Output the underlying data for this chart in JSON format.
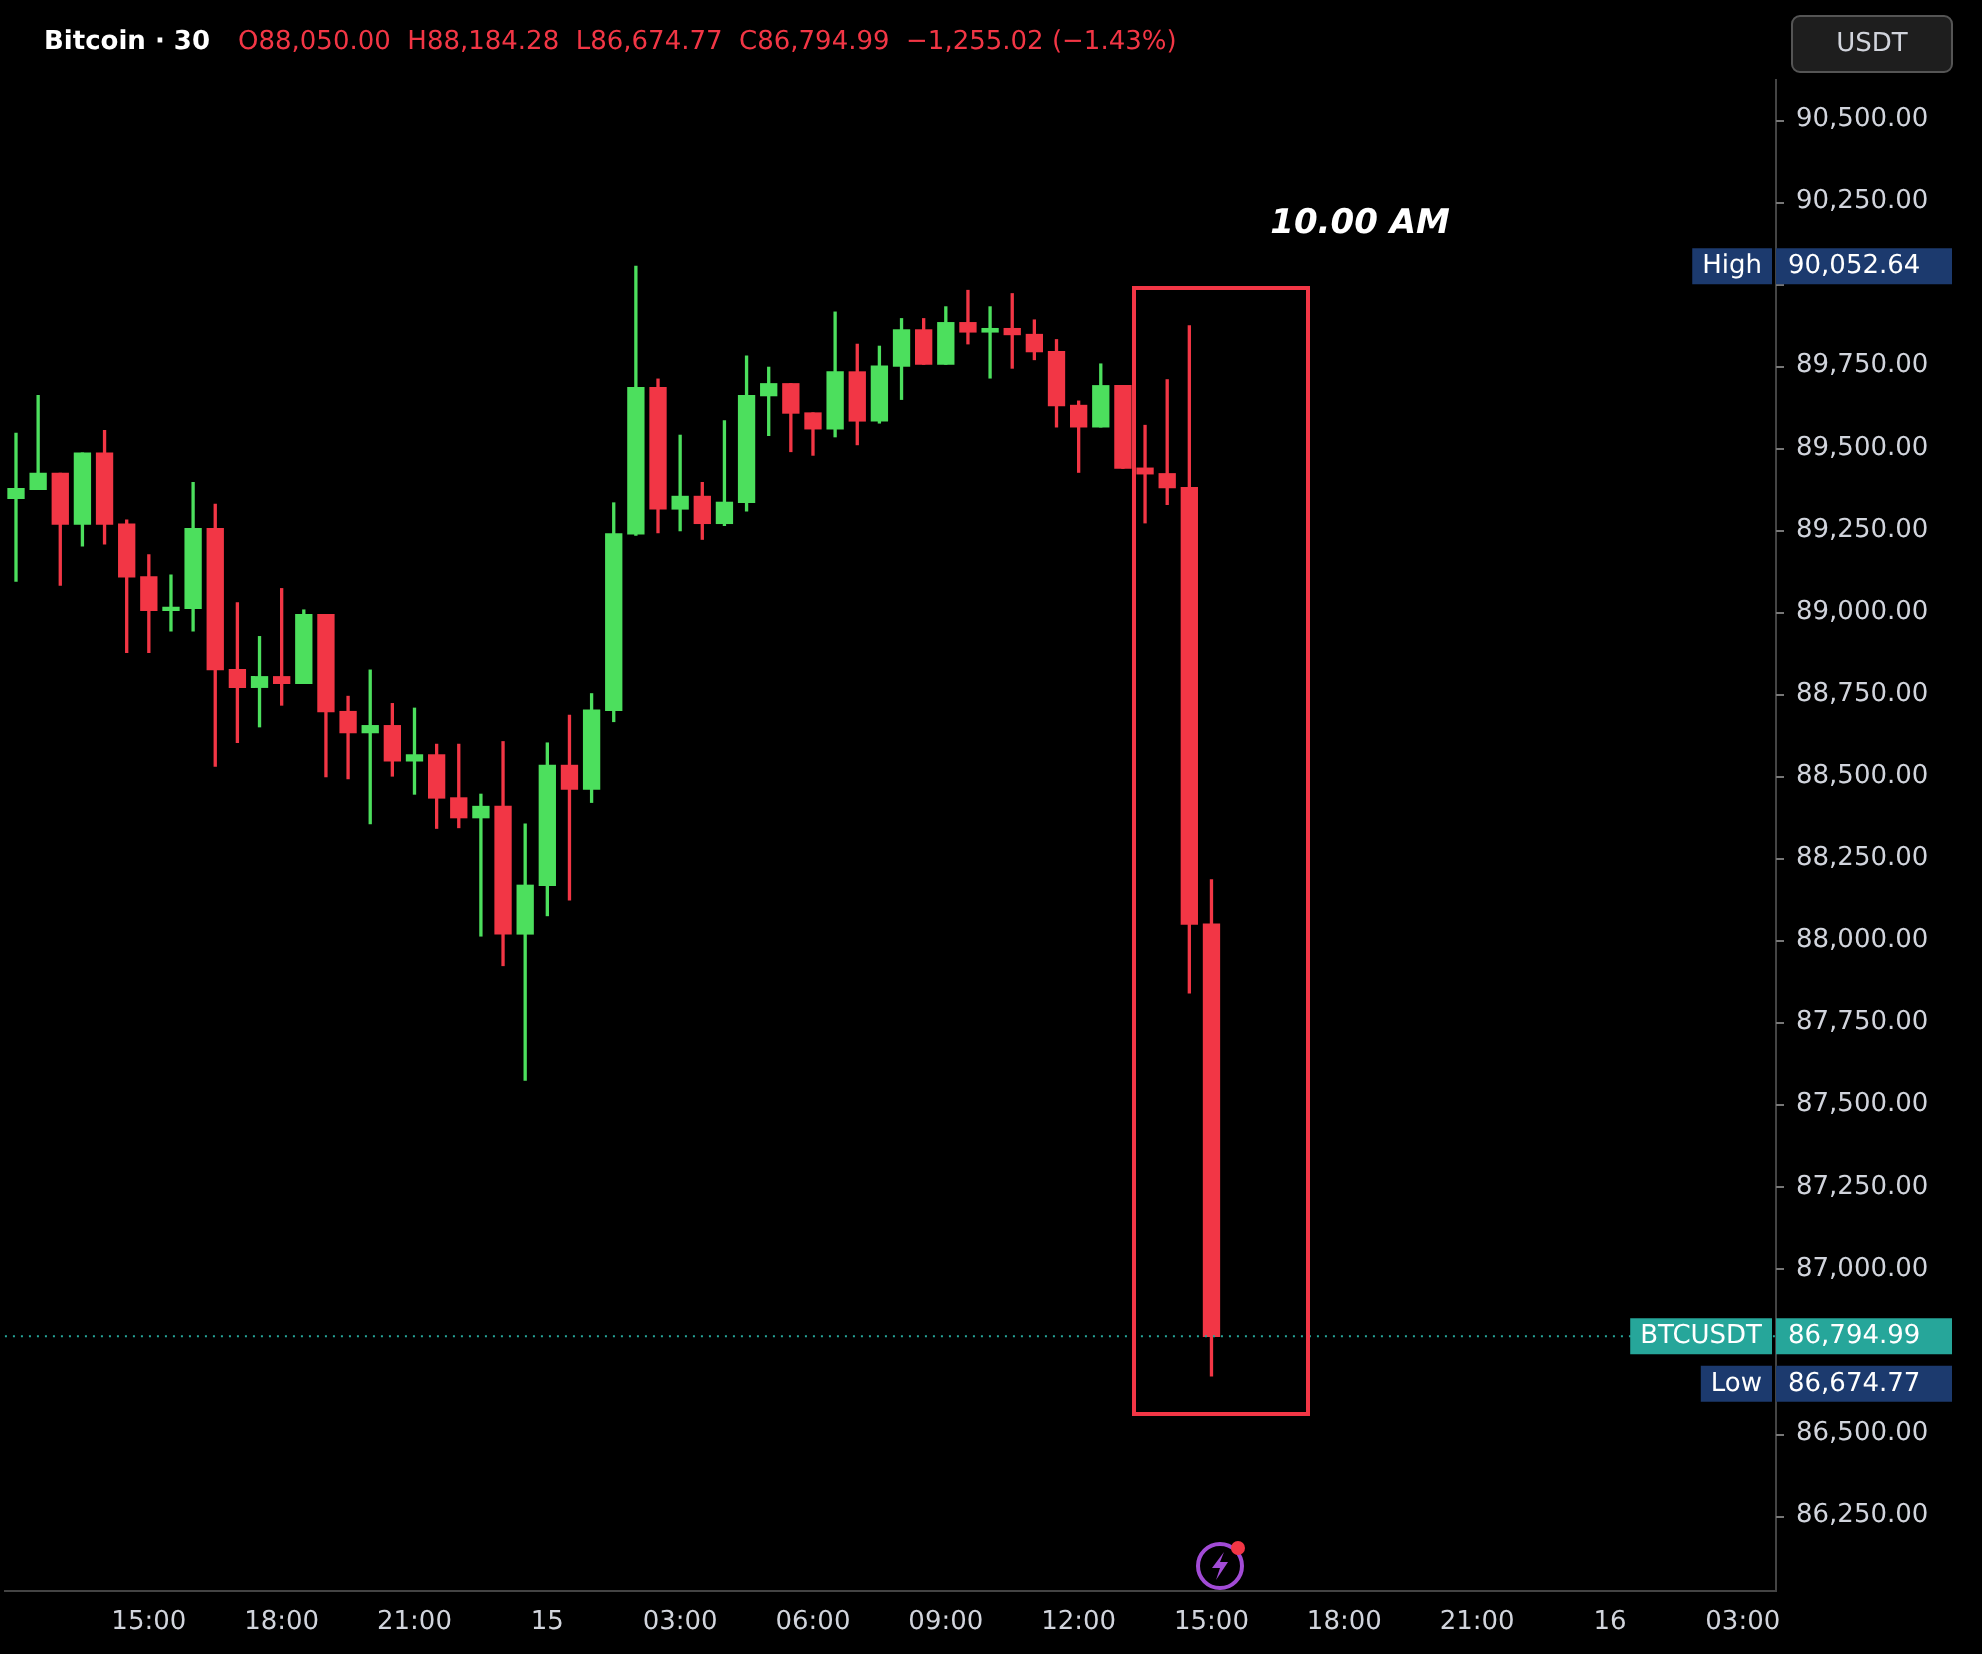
{
  "chart_data": {
    "type": "candlestick",
    "title": "Bitcoin · 30",
    "subtitle": "O88,050.00  H88,184.28  L86,674.77  C86,794.99  −1,255.02 (−1.43%)",
    "ylabel": "USDT",
    "categories": [
      null,
      null,
      null,
      null,
      null,
      null,
      "15:00",
      null,
      null,
      null,
      null,
      null,
      "18:00",
      null,
      null,
      null,
      null,
      null,
      "21:00",
      null,
      null,
      null,
      null,
      null,
      "15",
      null,
      null,
      null,
      null,
      null,
      "03:00",
      null,
      null,
      null,
      null,
      null,
      "06:00",
      null,
      null,
      null,
      null,
      null,
      "09:00",
      null,
      null,
      null,
      null,
      null,
      "12:00",
      null,
      null,
      null,
      null,
      null,
      "15:00",
      null,
      null,
      null,
      null,
      null,
      "18:00",
      null,
      null,
      null,
      null,
      null,
      "21:00",
      null,
      null,
      null,
      null,
      null,
      "16",
      null,
      null,
      null,
      null,
      null,
      "03:00",
      null
    ],
    "ohlc": [
      [
        89346,
        89544,
        89094,
        89376
      ],
      [
        89374,
        89659,
        89374,
        89422
      ],
      [
        89422,
        89422,
        89082,
        89268
      ],
      [
        89268,
        89484,
        89202,
        89484
      ],
      [
        89484,
        89552,
        89208,
        89268
      ],
      [
        89268,
        89280,
        88877,
        89107
      ],
      [
        89107,
        89174,
        88877,
        89005
      ],
      [
        89005,
        89112,
        88943,
        89014
      ],
      [
        89011,
        89394,
        88943,
        89254
      ],
      [
        89254,
        89328,
        88531,
        88825
      ],
      [
        88825,
        89028,
        88603,
        88771
      ],
      [
        88771,
        88925,
        88651,
        88803
      ],
      [
        88803,
        89071,
        88717,
        88783
      ],
      [
        88783,
        89006,
        88783,
        88992
      ],
      [
        88992,
        88992,
        88499,
        88697
      ],
      [
        88697,
        88743,
        88493,
        88633
      ],
      [
        88633,
        88823,
        88356,
        88654
      ],
      [
        88654,
        88721,
        88501,
        88547
      ],
      [
        88547,
        88707,
        88446,
        88565
      ],
      [
        88565,
        88597,
        88342,
        88434
      ],
      [
        88434,
        88597,
        88344,
        88374
      ],
      [
        88374,
        88445,
        88014,
        88408
      ],
      [
        88408,
        88605,
        87924,
        88020
      ],
      [
        88020,
        88354,
        87575,
        88168
      ],
      [
        88168,
        88601,
        88076,
        88533
      ],
      [
        88533,
        88685,
        88124,
        88461
      ],
      [
        88461,
        88751,
        88421,
        88701
      ],
      [
        88701,
        89332,
        88667,
        89238
      ],
      [
        89238,
        90052.64,
        89234,
        89683
      ],
      [
        89683,
        89709,
        89242,
        89314
      ],
      [
        89314,
        89538,
        89248,
        89352
      ],
      [
        89352,
        89394,
        89222,
        89270
      ],
      [
        89270,
        89582,
        89264,
        89334
      ],
      [
        89334,
        89779,
        89308,
        89659
      ],
      [
        89659,
        89745,
        89538,
        89695
      ],
      [
        89695,
        89695,
        89489,
        89606
      ],
      [
        89606,
        89606,
        89478,
        89558
      ],
      [
        89558,
        89913,
        89534,
        89731
      ],
      [
        89731,
        89815,
        89510,
        89582
      ],
      [
        89582,
        89809,
        89576,
        89749
      ],
      [
        89749,
        89893,
        89648,
        89859
      ],
      [
        89859,
        89893,
        89755,
        89755
      ],
      [
        89755,
        89929,
        89755,
        89881
      ],
      [
        89881,
        89979,
        89817,
        89853
      ],
      [
        89853,
        89929,
        89713,
        89863
      ],
      [
        89863,
        89969,
        89743,
        89845
      ],
      [
        89845,
        89889,
        89769,
        89793
      ],
      [
        89793,
        89829,
        89564,
        89629
      ],
      [
        89629,
        89642,
        89426,
        89564
      ],
      [
        89564,
        89755,
        89564,
        89689
      ],
      [
        89689,
        89689,
        89438,
        89438
      ],
      [
        89438,
        89568,
        89272,
        89421
      ],
      [
        89421,
        89707,
        89328,
        89379
      ],
      [
        89379,
        89871,
        87841,
        88050
      ],
      [
        88050,
        88184.28,
        86674.77,
        86794.99
      ],
      null,
      null,
      null,
      null,
      null,
      null,
      null,
      null,
      null,
      null,
      null,
      null,
      null,
      null,
      null,
      null,
      null,
      null,
      null,
      null,
      null,
      null,
      null,
      null,
      null
    ],
    "ylim": [
      86020,
      90620
    ],
    "yticks": [
      {
        "value": 86250,
        "label": "86,250.00"
      },
      {
        "value": 86500,
        "label": "86,500.00"
      },
      {
        "value": 86750,
        "label": null
      },
      {
        "value": 87000,
        "label": "87,000.00"
      },
      {
        "value": 87250,
        "label": "87,250.00"
      },
      {
        "value": 87500,
        "label": "87,500.00"
      },
      {
        "value": 87750,
        "label": "87,750.00"
      },
      {
        "value": 88000,
        "label": "88,000.00"
      },
      {
        "value": 88250,
        "label": "88,250.00"
      },
      {
        "value": 88500,
        "label": "88,500.00"
      },
      {
        "value": 88750,
        "label": "88,750.00"
      },
      {
        "value": 89000,
        "label": "89,000.00"
      },
      {
        "value": 89250,
        "label": "89,250.00"
      },
      {
        "value": 89500,
        "label": "89,500.00"
      },
      {
        "value": 89750,
        "label": "89,750.00"
      },
      {
        "value": 90000,
        "label": null
      },
      {
        "value": 90250,
        "label": "90,250.00"
      },
      {
        "value": 90500,
        "label": "90,500.00"
      }
    ],
    "ref_lines": [
      {
        "axis": "y",
        "value": 86794.99,
        "label": "BTCUSDT",
        "color": "#26a69a",
        "line_style": "dotted"
      }
    ],
    "annotations": [
      "10.00 AM",
      "High",
      "90,052.64",
      "Low",
      "86,674.77",
      "86,794.99"
    ]
  }
}
